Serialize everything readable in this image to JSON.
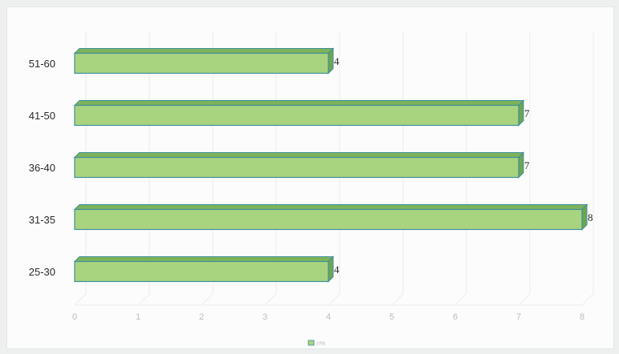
{
  "chart_data": {
    "type": "bar",
    "orientation": "horizontal",
    "style": "3d",
    "title": "",
    "xlabel": "",
    "ylabel": "",
    "categories": [
      "25-30",
      "31-35",
      "36-40",
      "41-50",
      "51-60"
    ],
    "series": [
      {
        "name": "n%",
        "values": [
          4,
          8,
          7,
          7,
          4
        ]
      }
    ],
    "x_ticks": [
      "0",
      "1",
      "2",
      "3",
      "4",
      "5",
      "6",
      "7",
      "8"
    ],
    "xlim": [
      0,
      8
    ],
    "data_labels": [
      "4",
      "8",
      "7",
      "7",
      "4"
    ],
    "legend": {
      "position": "bottom",
      "entries": [
        "n%"
      ]
    },
    "grid": true,
    "colors": {
      "bar_front": "#a9d47f",
      "bar_top": "#7db35a",
      "bar_side": "#6ea550",
      "bar_edge": "#3f8f9c",
      "grid": "#ececec"
    }
  }
}
